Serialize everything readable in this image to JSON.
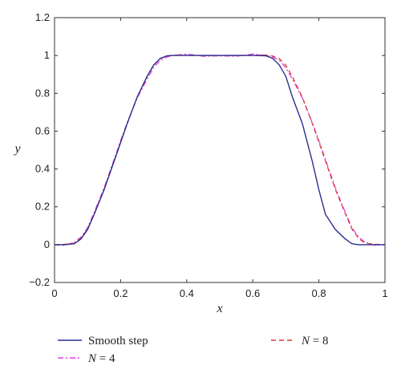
{
  "chart_data": {
    "type": "line",
    "xlabel": "x",
    "ylabel": "y",
    "xlim": [
      0,
      1
    ],
    "ylim": [
      -0.2,
      1.2
    ],
    "xticks": [
      0,
      0.2,
      0.4,
      0.6,
      0.8,
      1
    ],
    "xtick_labels": [
      "0",
      "0.2",
      "0.4",
      "0.6",
      "0.8",
      "1"
    ],
    "yticks": [
      -0.2,
      0,
      0.2,
      0.4,
      0.6,
      0.8,
      1,
      1.2
    ],
    "ytick_labels": [
      "−0.2",
      "0",
      "0.2",
      "0.4",
      "0.6",
      "0.8",
      "1",
      "1.2"
    ],
    "grid": false,
    "legend_position": "bottom",
    "x": [
      0,
      0.03,
      0.06,
      0.08,
      0.1,
      0.12,
      0.15,
      0.18,
      0.2,
      0.22,
      0.25,
      0.28,
      0.3,
      0.32,
      0.34,
      0.36,
      0.4,
      0.45,
      0.5,
      0.55,
      0.6,
      0.64,
      0.66,
      0.68,
      0.7,
      0.72,
      0.75,
      0.78,
      0.8,
      0.82,
      0.85,
      0.88,
      0.9,
      0.92,
      0.94,
      0.97,
      1
    ],
    "series": [
      {
        "name": "Smooth step",
        "color": "#2b2f8f",
        "dash": "solid",
        "values": [
          0,
          0,
          0.005,
          0.03,
          0.08,
          0.16,
          0.29,
          0.44,
          0.54,
          0.64,
          0.78,
          0.89,
          0.95,
          0.985,
          0.998,
          1,
          1,
          1,
          1,
          1,
          1,
          0.998,
          0.985,
          0.95,
          0.89,
          0.78,
          0.64,
          0.44,
          0.29,
          0.16,
          0.08,
          0.03,
          0.005,
          0,
          0,
          0,
          0
        ]
      },
      {
        "name": "N = 4",
        "name_parts": [
          "N",
          " = 4"
        ],
        "color": "#e040e0",
        "dash": "dashdot",
        "values": [
          0,
          -0.003,
          0.012,
          0.04,
          0.09,
          0.17,
          0.3,
          0.45,
          0.55,
          0.645,
          0.775,
          0.875,
          0.935,
          0.975,
          0.992,
          1.0,
          1.008,
          0.996,
          0.998,
          0.996,
          1.008,
          1.0,
          0.992,
          0.975,
          0.935,
          0.875,
          0.775,
          0.645,
          0.55,
          0.45,
          0.3,
          0.17,
          0.09,
          0.04,
          0.012,
          -0.003,
          0
        ]
      },
      {
        "name": "N = 8",
        "name_parts": [
          "N",
          " = 8"
        ],
        "color": "#d93a3a",
        "dash": "dashed",
        "values": [
          0,
          0.002,
          0.008,
          0.034,
          0.083,
          0.163,
          0.292,
          0.442,
          0.542,
          0.641,
          0.779,
          0.888,
          0.948,
          0.983,
          0.997,
          1.002,
          1.001,
          0.999,
          1.0,
          0.999,
          1.001,
          1.002,
          0.997,
          0.983,
          0.948,
          0.888,
          0.779,
          0.641,
          0.542,
          0.442,
          0.292,
          0.163,
          0.083,
          0.034,
          0.008,
          0.002,
          0
        ]
      }
    ]
  }
}
